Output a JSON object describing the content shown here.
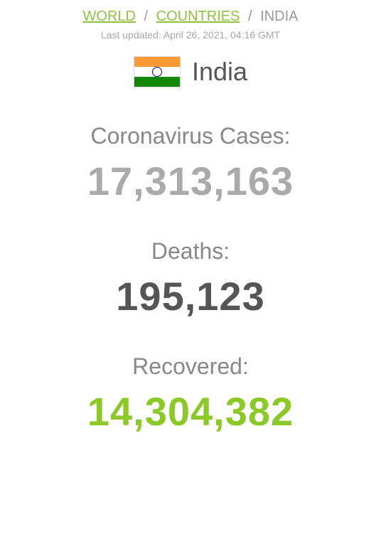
{
  "breadcrumb": {
    "world": "WORLD",
    "countries": "COUNTRIES",
    "current": "INDIA"
  },
  "last_updated": "Last updated: April 26, 2021, 04:16 GMT",
  "country": {
    "name": "India"
  },
  "stats": {
    "cases": {
      "label": "Coronavirus Cases:",
      "value": "17,313,163",
      "color": "#aaaaaa"
    },
    "deaths": {
      "label": "Deaths:",
      "value": "195,123",
      "color": "#555555"
    },
    "recovered": {
      "label": "Recovered:",
      "value": "14,304,382",
      "color": "#8ac926"
    }
  },
  "flag_colors": {
    "saffron": "#ff9933",
    "white": "#ffffff",
    "green": "#138808",
    "chakra": "#000080"
  }
}
